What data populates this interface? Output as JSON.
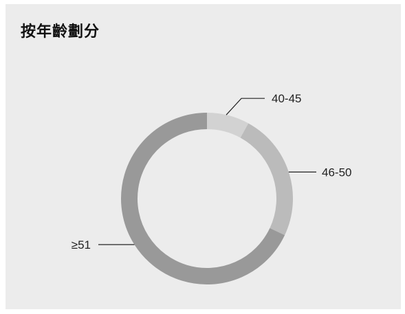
{
  "title": "按年齡劃分",
  "chart_data": {
    "type": "donut",
    "categories": [
      "40-45",
      "46-50",
      "≥51"
    ],
    "values": [
      8,
      24,
      68
    ],
    "colors": [
      "#d2d2d2",
      "#bbbbbb",
      "#999999"
    ],
    "labels_shown": [
      "40-45",
      "46-50",
      "≥51"
    ]
  }
}
